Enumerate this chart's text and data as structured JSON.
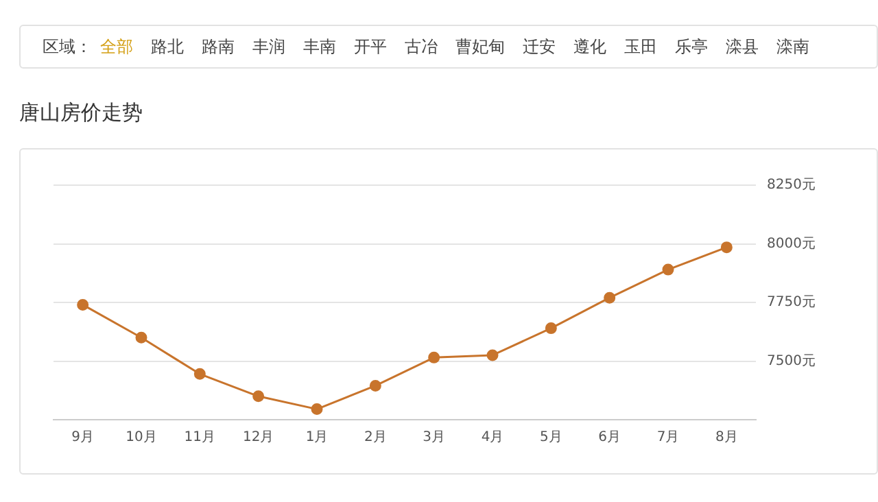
{
  "chart_data": {
    "type": "line",
    "title": "唐山房价走势",
    "annotations": [
      "区域：",
      "全部",
      "路北",
      "路南",
      "丰润",
      "丰南",
      "开平",
      "古冶",
      "曹妃甸",
      "迁安",
      "遵化",
      "玉田",
      "乐亭",
      "滦县",
      "滦南"
    ],
    "categories": [
      "9月",
      "10月",
      "11月",
      "12月",
      "1月",
      "2月",
      "3月",
      "4月",
      "5月",
      "6月",
      "7月",
      "8月"
    ],
    "series": [
      {
        "color": "#c8742c",
        "values": [
          7740,
          7600,
          7445,
          7350,
          7295,
          7395,
          7515,
          7525,
          7640,
          7770,
          7890,
          7985
        ]
      }
    ],
    "ylim": [
      7250,
      8250
    ],
    "yticks": [
      {
        "value": 7500,
        "label": "7500元"
      },
      {
        "value": 7750,
        "label": "7750元"
      },
      {
        "value": 8000,
        "label": "8000元"
      },
      {
        "value": 8250,
        "label": "8250元"
      }
    ],
    "grid": "y",
    "marker": "circle",
    "line_style": "solid",
    "legend": false
  }
}
